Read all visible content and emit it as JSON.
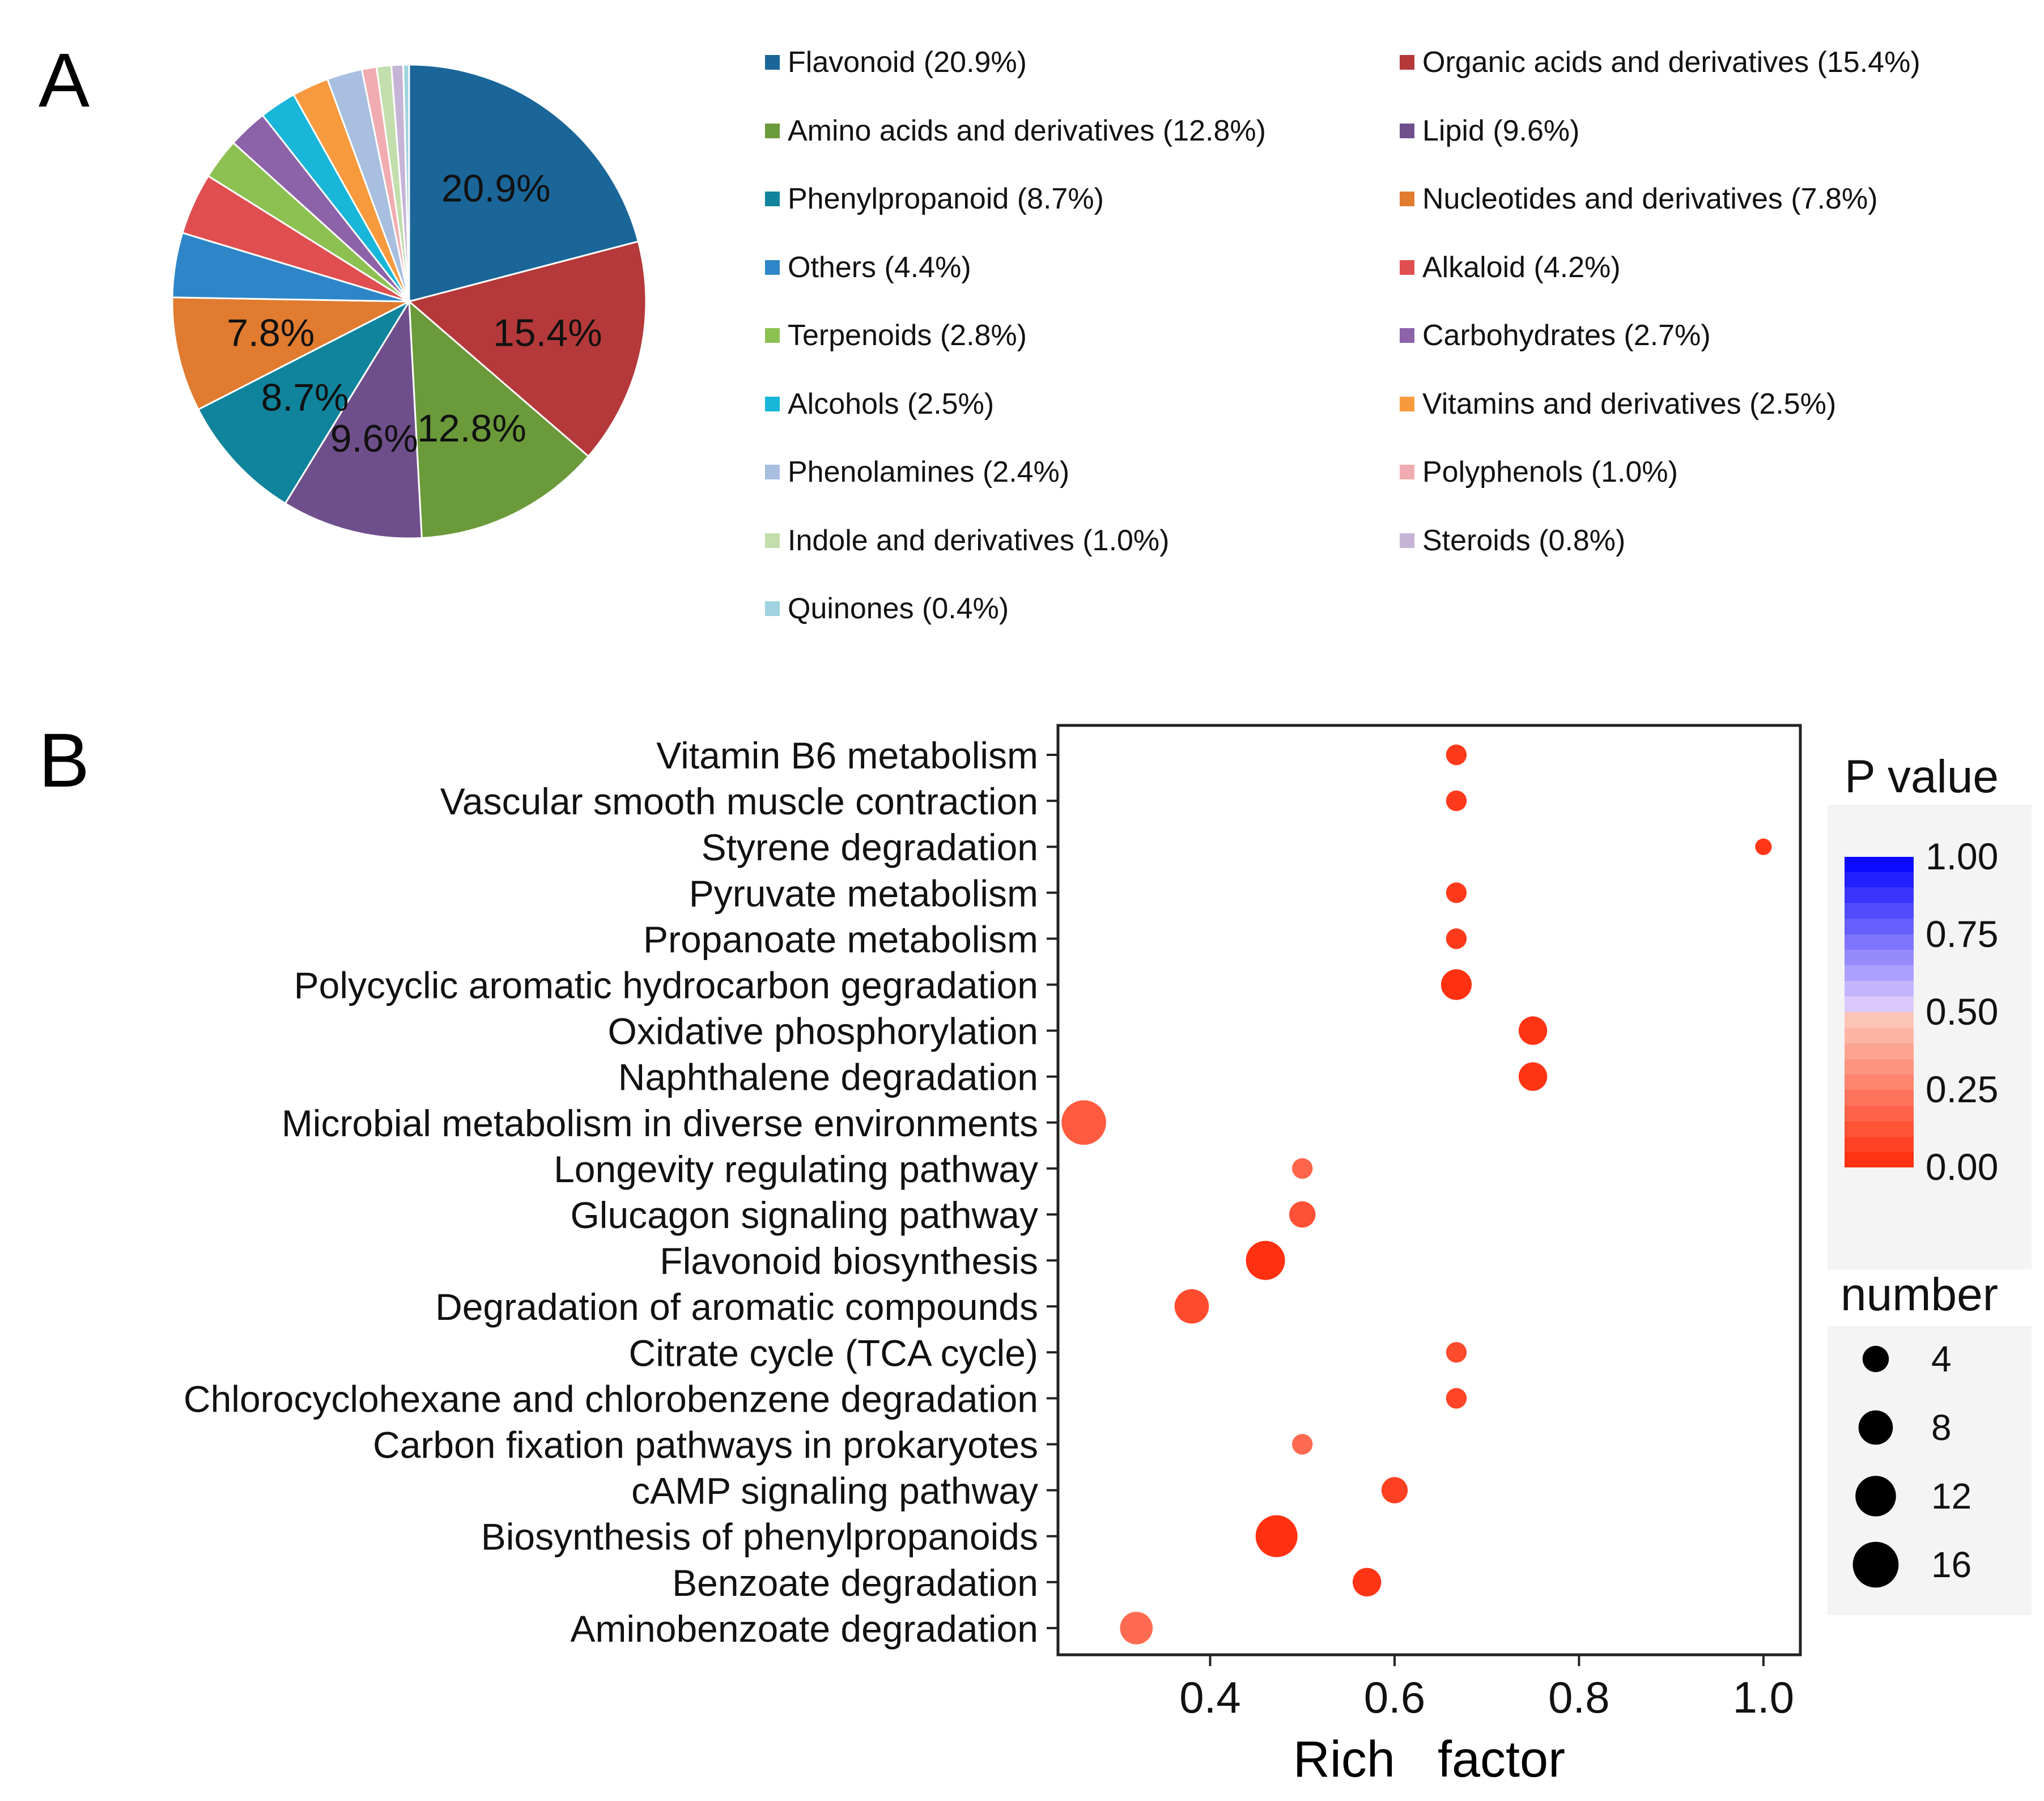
{
  "panel_labels": {
    "a": "A",
    "b": "B"
  },
  "chart_data": [
    {
      "type": "pie",
      "panel": "A",
      "slices": [
        {
          "label": "Flavonoid",
          "value": 20.9,
          "pct": "20.9%",
          "legend": "Flavonoid (20.9%)",
          "color": "#1a6699"
        },
        {
          "label": "Organic acids and derivatives",
          "value": 15.4,
          "pct": "15.4%",
          "legend": "Organic acids and derivatives (15.4%)",
          "color": "#b5393a"
        },
        {
          "label": "Amino acids and derivatives",
          "value": 12.8,
          "pct": "12.8%",
          "legend": "Amino acids and derivatives (12.8%)",
          "color": "#6b9a3a"
        },
        {
          "label": "Lipid",
          "value": 9.6,
          "pct": "9.6%",
          "legend": "Lipid (9.6%)",
          "color": "#6e4f8b"
        },
        {
          "label": "Phenylpropanoid",
          "value": 8.7,
          "pct": "8.7%",
          "legend": "Phenylpropanoid (8.7%)",
          "color": "#0f849c"
        },
        {
          "label": "Nucleotides and derivatives",
          "value": 7.8,
          "pct": "7.8%",
          "legend": "Nucleotides and derivatives (7.8%)",
          "color": "#e07b30"
        },
        {
          "label": "Others",
          "value": 4.4,
          "pct": "",
          "legend": "Others (4.4%)",
          "color": "#2e86c8"
        },
        {
          "label": "Alkaloid",
          "value": 4.2,
          "pct": "",
          "legend": "Alkaloid (4.2%)",
          "color": "#e04e50"
        },
        {
          "label": "Terpenoids",
          "value": 2.8,
          "pct": "",
          "legend": "Terpenoids (2.8%)",
          "color": "#8cc152"
        },
        {
          "label": "Carbohydrates",
          "value": 2.7,
          "pct": "",
          "legend": "Carbohydrates (2.7%)",
          "color": "#8c62a8"
        },
        {
          "label": "Alcohols",
          "value": 2.5,
          "pct": "",
          "legend": "Alcohols (2.5%)",
          "color": "#18b6d8"
        },
        {
          "label": "Vitamins and derivatives",
          "value": 2.5,
          "pct": "",
          "legend": "Vitamins and derivatives (2.5%)",
          "color": "#f79a3e"
        },
        {
          "label": "Phenolamines",
          "value": 2.4,
          "pct": "",
          "legend": "Phenolamines (2.4%)",
          "color": "#a8bfe0"
        },
        {
          "label": "Polyphenols",
          "value": 1.0,
          "pct": "",
          "legend": "Polyphenols (1.0%)",
          "color": "#f0acb0"
        },
        {
          "label": "Indole and derivatives",
          "value": 1.0,
          "pct": "",
          "legend": "Indole and derivatives (1.0%)",
          "color": "#c2deac"
        },
        {
          "label": "Steroids",
          "value": 0.8,
          "pct": "",
          "legend": "Steroids (0.8%)",
          "color": "#c6b4d6"
        },
        {
          "label": "Quinones",
          "value": 0.4,
          "pct": "",
          "legend": "Quinones (0.4%)",
          "color": "#9fd3e0"
        }
      ]
    },
    {
      "type": "scatter",
      "panel": "B",
      "xlabel": "Rich   factor",
      "ylabel": "",
      "xlim": [
        0.235,
        1.04
      ],
      "xticks": [
        0.4,
        0.6,
        0.8,
        1.0
      ],
      "xtick_labels": [
        "0.4",
        "0.6",
        "0.8",
        "1.0"
      ],
      "categories": [
        "Vitamin B6 metabolism",
        "Vascular smooth muscle contraction",
        "Styrene degradation",
        "Pyruvate metabolism",
        "Propanoate metabolism",
        "Polycyclic aromatic hydrocarbon gegradation",
        "Oxidative phosphorylation",
        "Naphthalene degradation",
        "Microbial metabolism in diverse environments",
        "Longevity regulating pathway",
        "Glucagon signaling pathway",
        "Flavonoid biosynthesis",
        "Degradation of aromatic compounds",
        "Citrate cycle (TCA cycle)",
        "Chlorocyclohexane and chlorobenzene degradation",
        "Carbon fixation pathways in prokaryotes",
        "cAMP signaling pathway",
        "Biosynthesis of phenylpropanoids",
        "Benzoate degradation",
        "Aminobenzoate degradation"
      ],
      "points": [
        {
          "pathway": "Vitamin B6 metabolism",
          "rich_factor": 0.667,
          "number": 2,
          "p_value": 0.05
        },
        {
          "pathway": "Vascular smooth muscle contraction",
          "rich_factor": 0.667,
          "number": 2,
          "p_value": 0.05
        },
        {
          "pathway": "Styrene degradation",
          "rich_factor": 1.0,
          "number": 1,
          "p_value": 0.04
        },
        {
          "pathway": "Pyruvate metabolism",
          "rich_factor": 0.667,
          "number": 2,
          "p_value": 0.05
        },
        {
          "pathway": "Propanoate metabolism",
          "rich_factor": 0.667,
          "number": 2,
          "p_value": 0.05
        },
        {
          "pathway": "Polycyclic aromatic hydrocarbon gegradation",
          "rich_factor": 0.667,
          "number": 6,
          "p_value": 0.02
        },
        {
          "pathway": "Oxidative phosphorylation",
          "rich_factor": 0.75,
          "number": 5,
          "p_value": 0.03
        },
        {
          "pathway": "Naphthalene degradation",
          "rich_factor": 0.75,
          "number": 5,
          "p_value": 0.03
        },
        {
          "pathway": "Microbial metabolism in diverse environments",
          "rich_factor": 0.263,
          "number": 15,
          "p_value": 0.15
        },
        {
          "pathway": "Longevity regulating pathway",
          "rich_factor": 0.5,
          "number": 2,
          "p_value": 0.18
        },
        {
          "pathway": "Glucagon signaling pathway",
          "rich_factor": 0.5,
          "number": 4,
          "p_value": 0.12
        },
        {
          "pathway": "Flavonoid biosynthesis",
          "rich_factor": 0.46,
          "number": 11,
          "p_value": 0.02
        },
        {
          "pathway": "Degradation of aromatic compounds",
          "rich_factor": 0.38,
          "number": 8,
          "p_value": 0.1
        },
        {
          "pathway": "Citrate cycle (TCA cycle)",
          "rich_factor": 0.667,
          "number": 2,
          "p_value": 0.1
        },
        {
          "pathway": "Chlorocyclohexane and chlorobenzene degradation",
          "rich_factor": 0.667,
          "number": 2,
          "p_value": 0.08
        },
        {
          "pathway": "Carbon fixation pathways in prokaryotes",
          "rich_factor": 0.5,
          "number": 2,
          "p_value": 0.2
        },
        {
          "pathway": "cAMP signaling pathway",
          "rich_factor": 0.6,
          "number": 4,
          "p_value": 0.07
        },
        {
          "pathway": "Biosynthesis of phenylpropanoids",
          "rich_factor": 0.472,
          "number": 13,
          "p_value": 0.02
        },
        {
          "pathway": "Benzoate degradation",
          "rich_factor": 0.57,
          "number": 5,
          "p_value": 0.03
        },
        {
          "pathway": "Aminobenzoate degradation",
          "rich_factor": 0.32,
          "number": 7,
          "p_value": 0.2
        }
      ],
      "colorbar": {
        "title": "P value",
        "ticks": [
          1.0,
          0.75,
          0.5,
          0.25,
          0.0
        ],
        "tick_labels": [
          "1.00",
          "0.75",
          "0.50",
          "0.25",
          "0.00"
        ],
        "low_color": "#ff2a0a",
        "high_color": "#0000ff"
      },
      "size_legend": {
        "title": "number",
        "values": [
          4,
          8,
          12,
          16
        ],
        "labels": [
          "4",
          "8",
          "12",
          "16"
        ]
      }
    }
  ]
}
